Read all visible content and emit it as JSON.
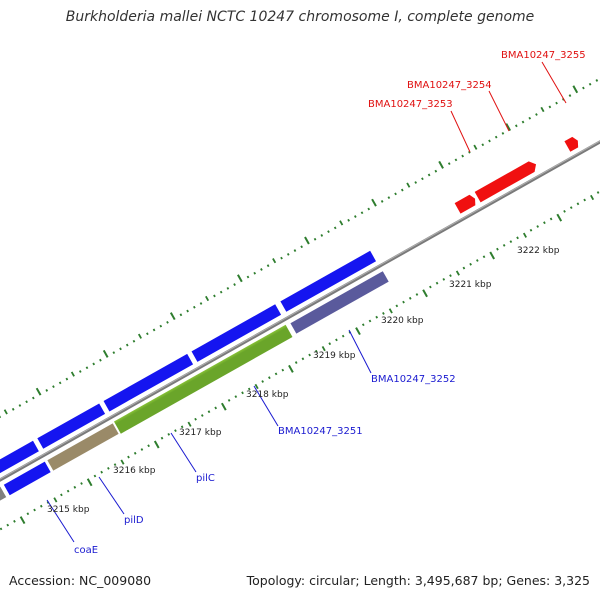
{
  "title": "Burkholderia mallei NCTC 10247 chromosome I, complete genome",
  "footer": {
    "accession": "Accession: NC_009080",
    "stats": "Topology: circular; Length: 3,495,687 bp; Genes: 3,325"
  },
  "colors": {
    "backbone": "#808080",
    "ticks": "#2e7d2e",
    "forward_gene": "#1515f0",
    "reverse_gene": "#5a5a9c",
    "highlight_gene": "#f01010",
    "label_blue": "#1a1ad0",
    "label_red": "#e01010"
  },
  "ticks": [
    {
      "label": "3215 kbp"
    },
    {
      "label": "3216 kbp"
    },
    {
      "label": "3217 kbp"
    },
    {
      "label": "3218 kbp"
    },
    {
      "label": "3219 kbp"
    },
    {
      "label": "3220 kbp"
    },
    {
      "label": "3221 kbp"
    },
    {
      "label": "3222 kbp"
    }
  ],
  "gene_labels": [
    {
      "name": "coaE",
      "color": "blue"
    },
    {
      "name": "pilD",
      "color": "blue"
    },
    {
      "name": "pilC",
      "color": "blue"
    },
    {
      "name": "BMA10247_3251",
      "color": "blue"
    },
    {
      "name": "BMA10247_3252",
      "color": "blue"
    },
    {
      "name": "BMA10247_3253",
      "color": "red"
    },
    {
      "name": "BMA10247_3254",
      "color": "red"
    },
    {
      "name": "BMA10247_3255",
      "color": "red"
    }
  ]
}
